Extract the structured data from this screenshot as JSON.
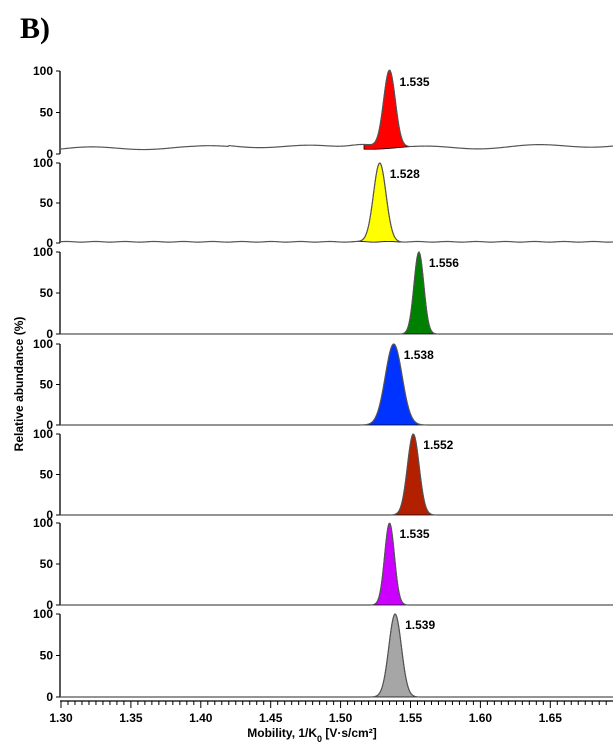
{
  "figure": {
    "panel_label": "B)"
  },
  "chart_data": {
    "type": "area",
    "xlabel_main": "Mobility, 1/K",
    "xlabel_sub": "0",
    "xlabel_unit": " [V·s/cm²]",
    "ylabel": "Relative abundance (%)",
    "xlim": [
      1.3,
      1.695
    ],
    "ylim": [
      0,
      100
    ],
    "x_ticks": [
      "1.30",
      "1.35",
      "1.40",
      "1.45",
      "1.50",
      "1.55",
      "1.60",
      "1.65"
    ],
    "y_ticks": [
      "0",
      "50",
      "100"
    ],
    "series": [
      {
        "peak": 1.535,
        "peak_label": "1.535",
        "width": 0.0042,
        "color": "#ff0000",
        "baseline": "elevated",
        "shoulder": true
      },
      {
        "peak": 1.528,
        "peak_label": "1.528",
        "width": 0.0045,
        "color": "#ffff00",
        "baseline": "low"
      },
      {
        "peak": 1.556,
        "peak_label": "1.556",
        "width": 0.0035,
        "color": "#008000",
        "baseline": "flat"
      },
      {
        "peak": 1.538,
        "peak_label": "1.538",
        "width": 0.006,
        "color": "#0033ff",
        "baseline": "flat"
      },
      {
        "peak": 1.552,
        "peak_label": "1.552",
        "width": 0.0042,
        "color": "#b22000",
        "baseline": "flat"
      },
      {
        "peak": 1.535,
        "peak_label": "1.535",
        "width": 0.0035,
        "color": "#cc00ff",
        "baseline": "flat"
      },
      {
        "peak": 1.539,
        "peak_label": "1.539",
        "width": 0.0045,
        "color": "#a6a6a6",
        "baseline": "flat"
      }
    ]
  }
}
